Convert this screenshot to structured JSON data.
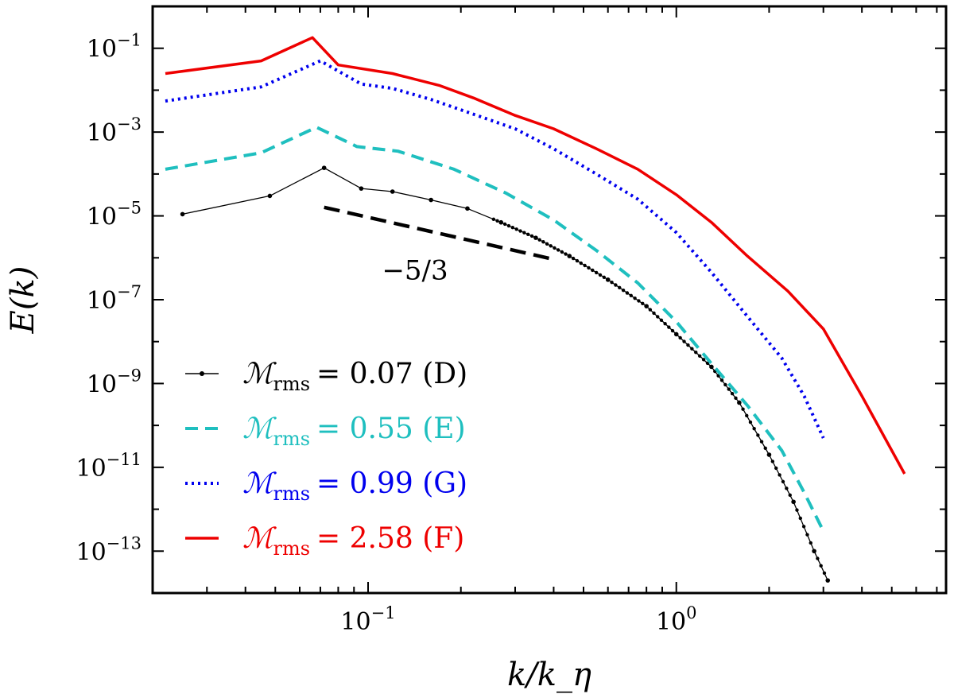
{
  "chart_data": {
    "type": "line",
    "title": "",
    "xlabel": "k/k_η",
    "ylabel": "E(k)",
    "xscale": "log",
    "yscale": "log",
    "xlim": [
      0.02,
      7.5
    ],
    "ylim": [
      1e-14,
      1.0
    ],
    "x_ticks": [
      {
        "value": 0.1,
        "mantissa": "10",
        "exp": "−1"
      },
      {
        "value": 1,
        "mantissa": "10",
        "exp": "0"
      }
    ],
    "y_ticks": [
      {
        "value": 0.1,
        "mantissa": "10",
        "exp": "−1"
      },
      {
        "value": 0.001,
        "mantissa": "10",
        "exp": "−3"
      },
      {
        "value": 1e-05,
        "mantissa": "10",
        "exp": "−5"
      },
      {
        "value": 1e-07,
        "mantissa": "10",
        "exp": "−7"
      },
      {
        "value": 1e-09,
        "mantissa": "10",
        "exp": "−9"
      },
      {
        "value": 1e-11,
        "mantissa": "10",
        "exp": "−11"
      },
      {
        "value": 1e-13,
        "mantissa": "10",
        "exp": "−13"
      }
    ],
    "annotations": [
      {
        "text": "−5/3",
        "slope": -1.6667,
        "x": [
          0.072,
          0.4
        ],
        "y0": 1.6e-05,
        "color": "#000000"
      }
    ],
    "series": [
      {
        "name": "M_rms = 0.07 (D)",
        "legend_symbol": "ℳ",
        "legend_sub": "rms",
        "legend_text": "= 0.07 (D)",
        "color": "#000000",
        "style": "solid-markers",
        "x": [
          0.025,
          0.048,
          0.072,
          0.095,
          0.12,
          0.16,
          0.21,
          0.27,
          0.35,
          0.45,
          0.6,
          0.8,
          1.0,
          1.3,
          1.6,
          2.0,
          2.4,
          2.8,
          3.1
        ],
        "y": [
          1.1e-05,
          3e-05,
          0.00014,
          4.5e-05,
          3.8e-05,
          2.4e-05,
          1.5e-05,
          7e-06,
          3e-06,
          1.1e-06,
          3e-07,
          7e-08,
          1.5e-08,
          2.5e-09,
          3.5e-10,
          2e-11,
          1.5e-12,
          1e-13,
          2e-14
        ]
      },
      {
        "name": "M_rms = 0.55 (E)",
        "legend_symbol": "ℳ",
        "legend_sub": "rms",
        "legend_text": "= 0.55 (E)",
        "color": "#1fbfbf",
        "style": "dashed",
        "x": [
          0.022,
          0.045,
          0.068,
          0.092,
          0.125,
          0.19,
          0.28,
          0.4,
          0.55,
          0.75,
          1.0,
          1.3,
          1.7,
          2.2,
          2.6,
          3.0
        ],
        "y": [
          0.00013,
          0.00032,
          0.0013,
          0.00045,
          0.00035,
          0.00013,
          3.5e-05,
          8e-06,
          1.5e-06,
          2.5e-07,
          3e-08,
          3e-09,
          3e-10,
          2.5e-11,
          2.5e-12,
          3e-13
        ]
      },
      {
        "name": "M_rms = 0.99 (G)",
        "legend_symbol": "ℳ",
        "legend_sub": "rms",
        "legend_text": "= 0.99 (G)",
        "color": "#0000ee",
        "style": "dotted",
        "x": [
          0.022,
          0.045,
          0.07,
          0.095,
          0.12,
          0.16,
          0.21,
          0.3,
          0.4,
          0.55,
          0.75,
          1.0,
          1.3,
          1.7,
          2.2,
          2.6,
          3.0
        ],
        "y": [
          0.0055,
          0.012,
          0.05,
          0.014,
          0.011,
          0.006,
          0.003,
          0.0012,
          0.0004,
          0.0001,
          2.5e-05,
          4e-06,
          4.5e-07,
          4e-08,
          4e-09,
          5e-10,
          5e-11
        ]
      },
      {
        "name": "M_rms = 2.58 (F)",
        "legend_symbol": "ℳ",
        "legend_sub": "rms",
        "legend_text": "= 2.58 (F)",
        "color": "#ee0000",
        "style": "solid",
        "x": [
          0.022,
          0.045,
          0.066,
          0.08,
          0.12,
          0.17,
          0.22,
          0.3,
          0.4,
          0.55,
          0.75,
          1.0,
          1.3,
          1.7,
          2.3,
          3.0,
          4.0,
          5.5
        ],
        "y": [
          0.025,
          0.05,
          0.18,
          0.04,
          0.025,
          0.013,
          0.0065,
          0.0025,
          0.0012,
          0.0004,
          0.00013,
          3.2e-05,
          7e-06,
          1.1e-06,
          1.6e-07,
          2e-08,
          5e-10,
          7e-12
        ]
      }
    ]
  }
}
